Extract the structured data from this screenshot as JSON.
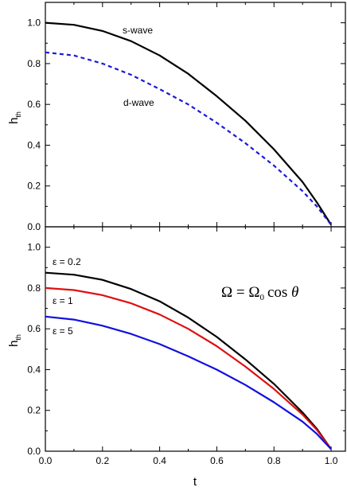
{
  "chart_data": [
    {
      "type": "line",
      "xlabel": "t",
      "ylabel": "h",
      "ylabel_sub": "th",
      "xlim": [
        0.0,
        1.05
      ],
      "ylim": [
        0.0,
        1.1
      ],
      "x_ticks": [
        "0.0",
        "0.2",
        "0.4",
        "0.6",
        "0.8",
        "1.0"
      ],
      "y_ticks": [
        "0.0",
        "0.2",
        "0.4",
        "0.6",
        "0.8",
        "1.0"
      ],
      "grid": false,
      "series": [
        {
          "name": "s-wave",
          "color": "#000000",
          "style": "solid",
          "x": [
            0.0,
            0.1,
            0.2,
            0.3,
            0.4,
            0.5,
            0.6,
            0.7,
            0.8,
            0.9,
            0.95,
            1.0
          ],
          "y": [
            1.0,
            0.99,
            0.96,
            0.91,
            0.84,
            0.75,
            0.64,
            0.52,
            0.38,
            0.22,
            0.12,
            0.01
          ]
        },
        {
          "name": "d-wave",
          "color": "#1a1adb",
          "style": "dashed",
          "x": [
            0.0,
            0.1,
            0.2,
            0.3,
            0.4,
            0.5,
            0.6,
            0.7,
            0.8,
            0.9,
            0.95,
            1.0
          ],
          "y": [
            0.855,
            0.84,
            0.8,
            0.745,
            0.675,
            0.6,
            0.51,
            0.41,
            0.3,
            0.175,
            0.1,
            0.01
          ]
        }
      ],
      "annotations": [
        "s-wave",
        "d-wave"
      ]
    },
    {
      "type": "line",
      "xlabel": "t",
      "ylabel": "h",
      "ylabel_sub": "th",
      "xlim": [
        0.0,
        1.05
      ],
      "ylim": [
        0.0,
        1.1
      ],
      "x_ticks": [
        "0.0",
        "0.2",
        "0.4",
        "0.6",
        "0.8",
        "1.0"
      ],
      "y_ticks": [
        "0.0",
        "0.2",
        "0.4",
        "0.6",
        "0.8",
        "1.0"
      ],
      "grid": false,
      "series": [
        {
          "name": "ε = 0.2",
          "color": "#000000",
          "style": "solid",
          "x": [
            0.0,
            0.1,
            0.2,
            0.3,
            0.4,
            0.5,
            0.6,
            0.7,
            0.8,
            0.9,
            0.95,
            1.0
          ],
          "y": [
            0.875,
            0.865,
            0.84,
            0.795,
            0.735,
            0.655,
            0.56,
            0.45,
            0.33,
            0.19,
            0.11,
            0.01
          ]
        },
        {
          "name": "ε = 1",
          "color": "#e01010",
          "style": "solid",
          "x": [
            0.0,
            0.1,
            0.2,
            0.3,
            0.4,
            0.5,
            0.6,
            0.7,
            0.8,
            0.9,
            0.95,
            1.0
          ],
          "y": [
            0.8,
            0.79,
            0.765,
            0.725,
            0.67,
            0.6,
            0.515,
            0.415,
            0.305,
            0.18,
            0.105,
            0.01
          ]
        },
        {
          "name": "ε = 5",
          "color": "#1010e0",
          "style": "solid",
          "x": [
            0.0,
            0.1,
            0.2,
            0.3,
            0.4,
            0.5,
            0.6,
            0.7,
            0.8,
            0.9,
            0.95,
            1.0
          ],
          "y": [
            0.66,
            0.645,
            0.615,
            0.575,
            0.525,
            0.465,
            0.4,
            0.325,
            0.24,
            0.145,
            0.085,
            0.01
          ]
        }
      ],
      "annotations": [
        "ε = 0.2",
        "ε = 1",
        "ε = 5"
      ],
      "formula": {
        "lhs": "Ω",
        "eq": "=",
        "rhs_base": "Ω",
        "rhs_sub": "0",
        "fn": "cos",
        "arg": "θ"
      }
    }
  ]
}
